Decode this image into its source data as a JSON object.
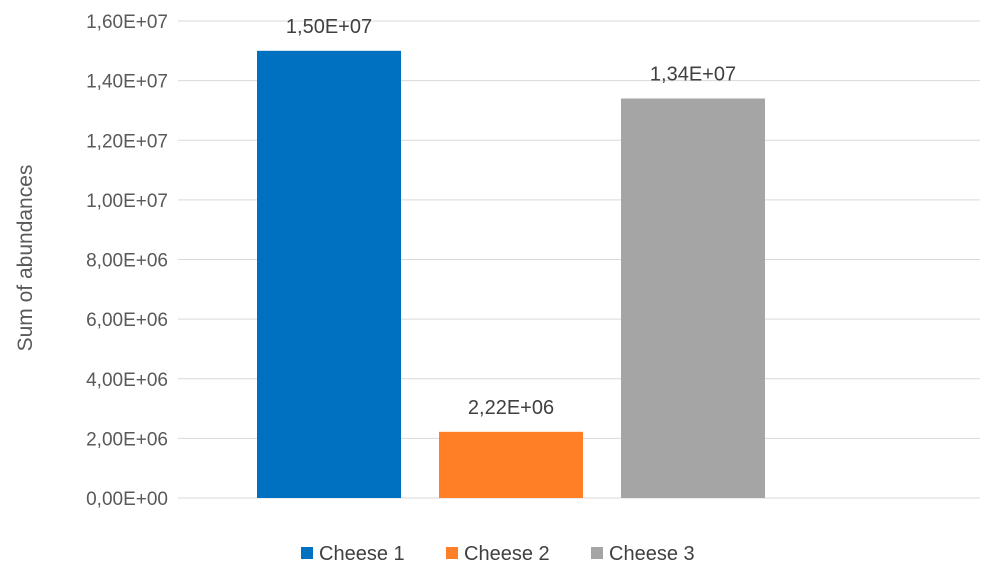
{
  "chart_data": {
    "type": "bar",
    "title": "",
    "xlabel": "",
    "ylabel": "Sum of abundances",
    "categories": [
      "Cheese 1",
      "Cheese 2",
      "Cheese 3"
    ],
    "values": [
      15000000,
      2220000,
      13400000
    ],
    "data_labels": [
      "1,50E+07",
      "2,22E+06",
      "1,34E+07"
    ],
    "colors": [
      "#0070c0",
      "#ff7f27",
      "#a5a5a5"
    ],
    "ylim": [
      0,
      16000000
    ],
    "yticks": [
      0,
      2000000,
      4000000,
      6000000,
      8000000,
      10000000,
      12000000,
      14000000,
      16000000
    ],
    "ytick_labels": [
      "0,00E+00",
      "2,00E+06",
      "4,00E+06",
      "6,00E+06",
      "8,00E+06",
      "1,00E+07",
      "1,20E+07",
      "1,40E+07",
      "1,60E+07"
    ],
    "grid": true,
    "legend_position": "bottom",
    "legend": [
      "Cheese 1",
      "Cheese 2",
      "Cheese 3"
    ]
  }
}
